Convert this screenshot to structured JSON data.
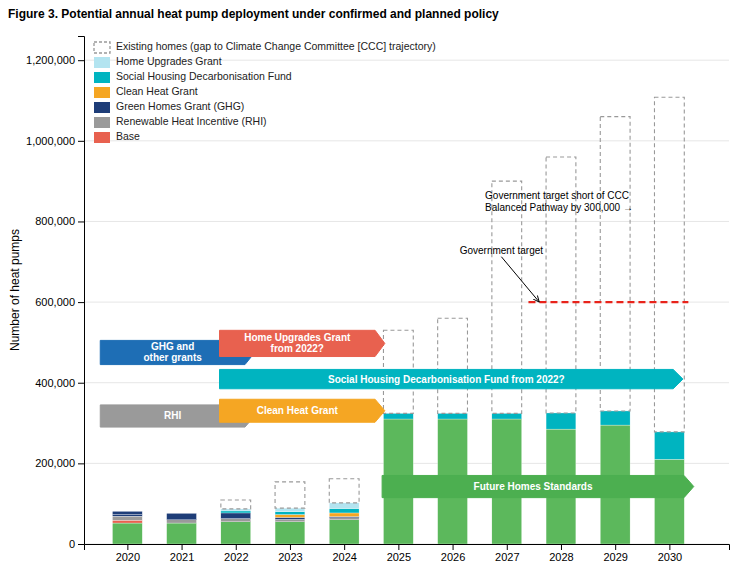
{
  "chart_data": {
    "type": "bar",
    "stacked": true,
    "title": "Figure 3. Potential annual heat pump deployment under confirmed and planned policy",
    "ylabel": "Number of heat pumps",
    "x": [
      2020,
      2021,
      2022,
      2023,
      2024,
      2025,
      2026,
      2027,
      2028,
      2029,
      2030
    ],
    "xlim": [
      2019.2,
      2031.1
    ],
    "xticks": [
      2020,
      2021,
      2022,
      2023,
      2024,
      2025,
      2026,
      2027,
      2028,
      2029,
      2030
    ],
    "ylim": [
      0,
      1260000
    ],
    "yticks": [
      0,
      {
        "value": 200000,
        "label": "200,000"
      },
      {
        "value": 400000,
        "label": "400,000"
      },
      {
        "value": 600000,
        "label": "600,000"
      },
      {
        "value": 800000,
        "label": "800,000"
      },
      {
        "value": 1000000,
        "label": "1,000,000"
      },
      {
        "value": 1200000,
        "label": "1,200,000"
      }
    ],
    "grid": true,
    "legend": "upper left",
    "series": [
      {
        "color": "#5cb85c",
        "values": [
          52000,
          52000,
          55000,
          55000,
          60000,
          310000,
          310000,
          310000,
          285000,
          295000,
          210000
        ]
      },
      {
        "name": "Base",
        "color": "#e8614f",
        "values": [
          7000,
          null,
          null,
          null,
          null,
          null,
          null,
          null,
          null,
          null,
          null
        ]
      },
      {
        "name": "Renewable Heat Incentive (RHI)",
        "color": "#9a9a9a",
        "values": [
          10000,
          8000,
          8000,
          6000,
          5000,
          null,
          null,
          null,
          null,
          null,
          null
        ]
      },
      {
        "name": "Green Homes Grant (GHG)",
        "color": "#1e3d78",
        "values": [
          4000,
          16000,
          14000,
          5000,
          3000,
          null,
          null,
          null,
          null,
          null,
          null
        ]
      },
      {
        "name": "Green Homes Grant (GHG)",
        "color": "#1e3d78",
        "values": [
          8000,
          null,
          null,
          null,
          null,
          null,
          null,
          null,
          null,
          null,
          null
        ]
      },
      {
        "name": "Clean Heat Grant",
        "color": "#f5a623",
        "values": [
          null,
          null,
          null,
          7000,
          9000,
          null,
          null,
          null,
          null,
          null,
          null
        ]
      },
      {
        "name": "Social Housing Decarbonisation Fund",
        "color": "#00b4c0",
        "values": [
          null,
          null,
          5000,
          7000,
          11000,
          14000,
          14000,
          14000,
          40000,
          35000,
          68000
        ]
      },
      {
        "name": "Home Upgrades Grant",
        "color": "#b3e4f0",
        "values": [
          null,
          null,
          5000,
          9000,
          14000,
          null,
          null,
          null,
          null,
          null,
          null
        ]
      },
      {
        "name": "Existing homes (gap to Climate Change Committee [CCC] trajectory)",
        "color": "#999999",
        "line_style": "dashed",
        "values": [
          null,
          null,
          22000,
          65000,
          60000,
          206000,
          236000,
          576000,
          635000,
          730000,
          830000
        ]
      }
    ],
    "reference_lines": [
      {
        "y": 600000,
        "x_start": 2027.4,
        "x_end": 2030.35,
        "color": "#e8231a",
        "line_style": "dashed"
      }
    ],
    "annotations": [
      {
        "text": "Government target short of CCC\nBalanced Pathway by 300,000  →",
        "x": 2026.6,
        "y": 850000
      },
      {
        "text": "Government target",
        "x": 2026.9,
        "y": 720000,
        "arrow_x": 2027.6,
        "arrow_y": 600000
      }
    ],
    "policy_arrows": [
      {
        "text": "RHI",
        "x": 2019.5,
        "x_end": 2022.35,
        "y": 290000,
        "height": 55000,
        "color": "#9a9a9a"
      },
      {
        "text": "GHG and\nother grants",
        "x": 2019.5,
        "x_end": 2022.35,
        "y": 445000,
        "height": 60000,
        "color": "#1e6eb5"
      },
      {
        "text": "Home Upgrades Grant\nfrom 2022?",
        "x": 2021.7,
        "x_end": 2024.75,
        "y": 465000,
        "height": 65000,
        "color": "#e8614f"
      },
      {
        "text": "Social Housing Decarbonisation Fund from 2022?",
        "x": 2021.7,
        "x_end": 2030.25,
        "y": 385000,
        "height": 48000,
        "color": "#00b4c0"
      },
      {
        "text": "Clean Heat Grant",
        "x": 2021.7,
        "x_end": 2024.75,
        "y": 302000,
        "height": 57000,
        "color": "#f5a623"
      },
      {
        "text": "Future Homes Standards",
        "x": 2024.7,
        "x_end": 2030.45,
        "y": 115000,
        "height": 55000,
        "color": "#4caf50"
      }
    ]
  }
}
